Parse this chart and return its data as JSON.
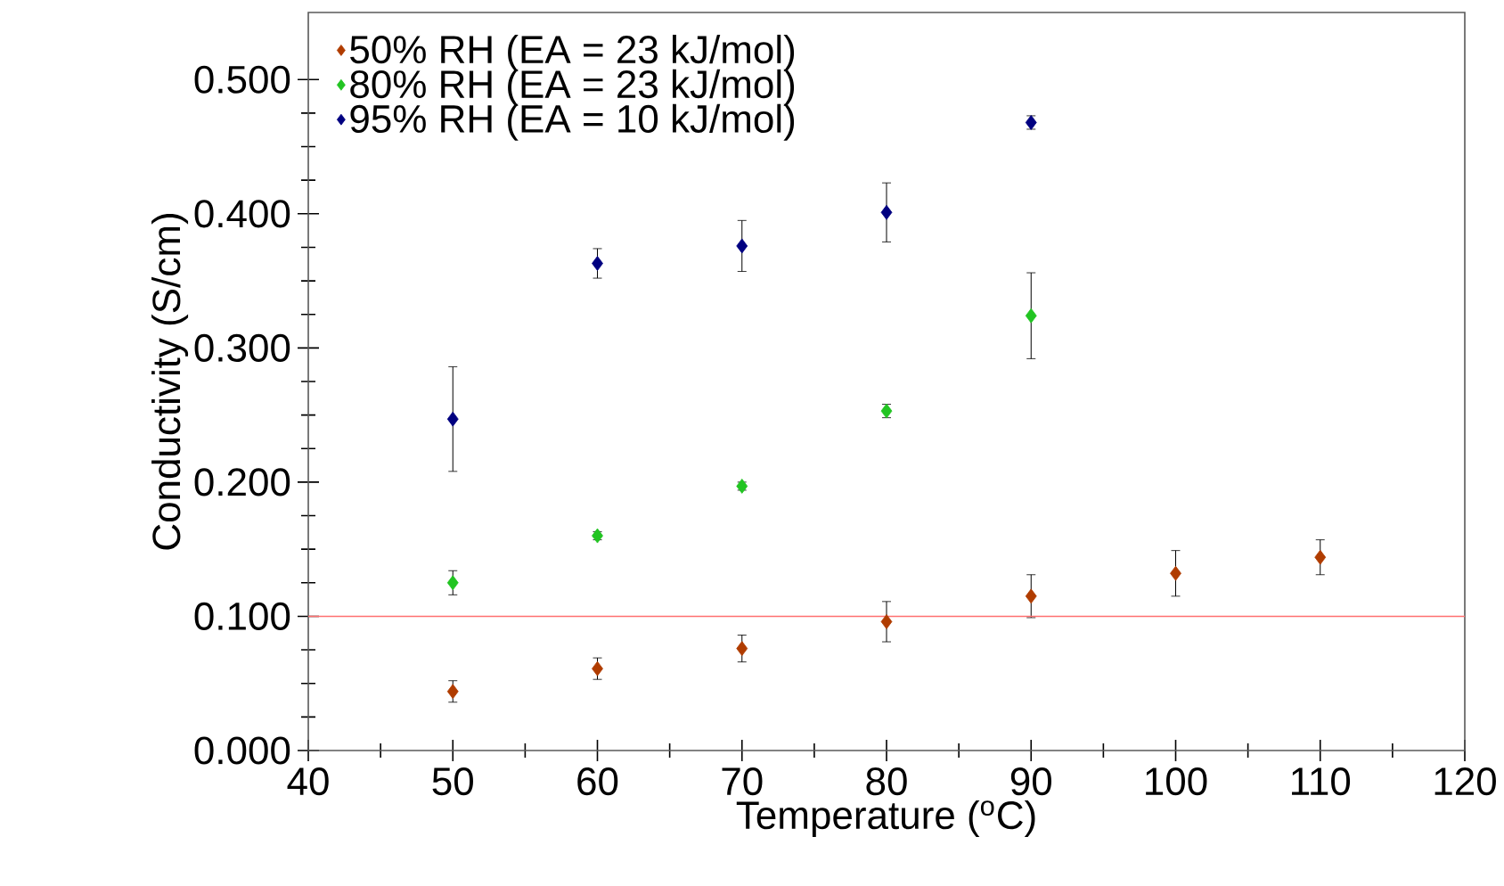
{
  "chart_data": {
    "type": "scatter",
    "xlabel": "Temperature ($^{o}$C)",
    "ylabel": "Conductivity (S/cm)",
    "xlim": [
      40,
      120
    ],
    "xticks": [
      40,
      50,
      60,
      70,
      80,
      90,
      100,
      110,
      120
    ],
    "ylim": [
      0,
      0.55
    ],
    "yticks": [
      {
        "value": 0,
        "label": "0.000"
      },
      {
        "value": 0.1,
        "label": "0.100"
      },
      {
        "value": 0.2,
        "label": "0.200"
      },
      {
        "value": 0.3,
        "label": "0.300"
      },
      {
        "value": 0.4,
        "label": "0.400"
      },
      {
        "value": 0.5,
        "label": "0.500"
      }
    ],
    "marker": "diamond",
    "legend": "top left",
    "grid": false,
    "ref_lines": [
      {
        "axis": "y",
        "value": 0.1,
        "color": "#ff7070"
      }
    ],
    "series": [
      {
        "name": "50% RH (EA = 23 kJ/mol)",
        "color": "#b03c00",
        "x": [
          50,
          60,
          70,
          80,
          90,
          100,
          110
        ],
        "values": [
          0.044,
          0.061,
          0.076,
          0.096,
          0.115,
          0.132,
          0.144
        ],
        "errors": [
          0.008,
          0.008,
          0.01,
          0.015,
          0.016,
          0.017,
          0.013
        ]
      },
      {
        "name": "80% RH (EA = 23 kJ/mol)",
        "color": "#22c422",
        "x": [
          50,
          60,
          70,
          80,
          90
        ],
        "values": [
          0.125,
          0.16,
          0.197,
          0.253,
          0.324
        ],
        "errors": [
          0.009,
          0.003,
          0.003,
          0.005,
          0.032
        ]
      },
      {
        "name": "95% RH (EA = 10 kJ/mol)",
        "color": "#000080",
        "x": [
          50,
          60,
          70,
          80,
          90
        ],
        "values": [
          0.247,
          0.363,
          0.376,
          0.401,
          0.468
        ],
        "errors": [
          0.039,
          0.011,
          0.019,
          0.022,
          0.005
        ]
      }
    ]
  }
}
